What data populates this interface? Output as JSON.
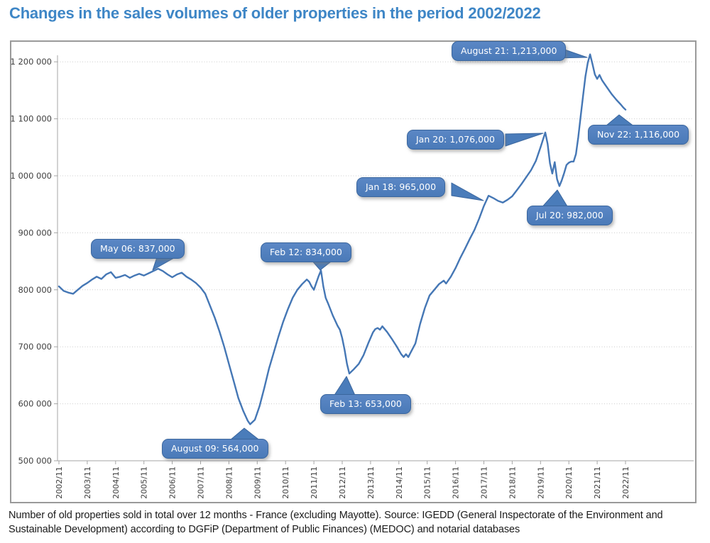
{
  "page": {
    "title": "Changes in the sales volumes of older properties in the period 2002/2022",
    "footer_line1": "Number of old properties sold in total over 12 months - France (excluding Mayotte). Source: IGEDD (General Inspectorate of the Environment and",
    "footer_line2": "Sustainable Development) according to DGFiP (Department of Public Finances) (MEDOC) and notarial databases"
  },
  "colors": {
    "title_blue": "#3E86C6",
    "line_blue": "#4577B5",
    "callout_fill": "#4A7CBA",
    "callout_border": "#3A669E",
    "chart_border": "#9A9A9A",
    "gridline": "#CBCBCB",
    "axis": "#A6A6A6",
    "axis_text": "#3F3F3F"
  },
  "chart_data": {
    "type": "line",
    "title": "Changes in the sales volumes of older properties in the period 2002/2022",
    "xlabel": "",
    "ylabel": "",
    "legend": "none",
    "grid": "horizontal-dotted",
    "ylim": [
      500000,
      1250000
    ],
    "y_tick_labels": [
      "500 000",
      "600 000",
      "700 000",
      "800 000",
      "900 000",
      "1 000 000",
      "1 100 000",
      "1 200 000"
    ],
    "x_tick_labels": [
      "2002/11",
      "2003/11",
      "2004/11",
      "2005/11",
      "2006/11",
      "2007/11",
      "2008/11",
      "2009/11",
      "2010/11",
      "2011/11",
      "2012/11",
      "2013/11",
      "2014/11",
      "2015/11",
      "2016/11",
      "2017/11",
      "2018/11",
      "2019/11",
      "2020/11",
      "2021/11",
      "2022/11"
    ],
    "series": [
      {
        "name": "Old properties sold in total over 12 months (France excluding Mayotte)",
        "points": [
          [
            "2002/11",
            806000
          ],
          [
            "2003/01",
            798000
          ],
          [
            "2003/03",
            795000
          ],
          [
            "2003/05",
            793000
          ],
          [
            "2003/07",
            800000
          ],
          [
            "2003/09",
            807000
          ],
          [
            "2003/11",
            812000
          ],
          [
            "2004/01",
            818000
          ],
          [
            "2004/03",
            823000
          ],
          [
            "2004/05",
            819000
          ],
          [
            "2004/07",
            827000
          ],
          [
            "2004/09",
            831000
          ],
          [
            "2004/11",
            821000
          ],
          [
            "2005/01",
            823000
          ],
          [
            "2005/03",
            826000
          ],
          [
            "2005/05",
            821000
          ],
          [
            "2005/07",
            825000
          ],
          [
            "2005/09",
            828000
          ],
          [
            "2005/11",
            825000
          ],
          [
            "2006/01",
            829000
          ],
          [
            "2006/03",
            833000
          ],
          [
            "2006/05",
            837000
          ],
          [
            "2006/07",
            833000
          ],
          [
            "2006/09",
            827000
          ],
          [
            "2006/11",
            822000
          ],
          [
            "2007/01",
            827000
          ],
          [
            "2007/03",
            830000
          ],
          [
            "2007/05",
            823000
          ],
          [
            "2007/07",
            818000
          ],
          [
            "2007/09",
            812000
          ],
          [
            "2007/11",
            804000
          ],
          [
            "2008/01",
            793000
          ],
          [
            "2008/03",
            772000
          ],
          [
            "2008/05",
            751000
          ],
          [
            "2008/07",
            727000
          ],
          [
            "2008/09",
            700000
          ],
          [
            "2008/11",
            670000
          ],
          [
            "2009/01",
            640000
          ],
          [
            "2009/03",
            610000
          ],
          [
            "2009/05",
            588000
          ],
          [
            "2009/07",
            570000
          ],
          [
            "2009/08",
            564000
          ],
          [
            "2009/10",
            572000
          ],
          [
            "2009/12",
            596000
          ],
          [
            "2010/02",
            628000
          ],
          [
            "2010/04",
            662000
          ],
          [
            "2010/06",
            690000
          ],
          [
            "2010/08",
            718000
          ],
          [
            "2010/10",
            744000
          ],
          [
            "2010/12",
            766000
          ],
          [
            "2011/02",
            786000
          ],
          [
            "2011/04",
            800000
          ],
          [
            "2011/06",
            810000
          ],
          [
            "2011/08",
            818000
          ],
          [
            "2011/09",
            814000
          ],
          [
            "2011/10",
            806000
          ],
          [
            "2011/11",
            800000
          ],
          [
            "2011/12",
            812000
          ],
          [
            "2012/01",
            824000
          ],
          [
            "2012/02",
            834000
          ],
          [
            "2012/03",
            806000
          ],
          [
            "2012/04",
            786000
          ],
          [
            "2012/05",
            776000
          ],
          [
            "2012/07",
            755000
          ],
          [
            "2012/09",
            737000
          ],
          [
            "2012/10",
            730000
          ],
          [
            "2012/11",
            715000
          ],
          [
            "2012/12",
            695000
          ],
          [
            "2013/01",
            670000
          ],
          [
            "2013/02",
            653000
          ],
          [
            "2013/03",
            657000
          ],
          [
            "2013/04",
            661000
          ],
          [
            "2013/06",
            670000
          ],
          [
            "2013/08",
            685000
          ],
          [
            "2013/10",
            706000
          ],
          [
            "2013/12",
            725000
          ],
          [
            "2014/01",
            731000
          ],
          [
            "2014/02",
            733000
          ],
          [
            "2014/03",
            730000
          ],
          [
            "2014/04",
            736000
          ],
          [
            "2014/06",
            726000
          ],
          [
            "2014/08",
            714000
          ],
          [
            "2014/10",
            701000
          ],
          [
            "2014/12",
            687000
          ],
          [
            "2015/01",
            682000
          ],
          [
            "2015/02",
            687000
          ],
          [
            "2015/03",
            682000
          ],
          [
            "2015/04",
            690000
          ],
          [
            "2015/06",
            706000
          ],
          [
            "2015/08",
            740000
          ],
          [
            "2015/10",
            768000
          ],
          [
            "2015/12",
            790000
          ],
          [
            "2016/02",
            800000
          ],
          [
            "2016/04",
            810000
          ],
          [
            "2016/06",
            816000
          ],
          [
            "2016/07",
            811000
          ],
          [
            "2016/09",
            823000
          ],
          [
            "2016/11",
            838000
          ],
          [
            "2017/01",
            856000
          ],
          [
            "2017/03",
            872000
          ],
          [
            "2017/05",
            889000
          ],
          [
            "2017/07",
            905000
          ],
          [
            "2017/09",
            925000
          ],
          [
            "2017/11",
            947000
          ],
          [
            "2018/01",
            965000
          ],
          [
            "2018/03",
            961000
          ],
          [
            "2018/05",
            956000
          ],
          [
            "2018/07",
            953000
          ],
          [
            "2018/09",
            958000
          ],
          [
            "2018/11",
            964000
          ],
          [
            "2019/01",
            975000
          ],
          [
            "2019/03",
            986000
          ],
          [
            "2019/05",
            998000
          ],
          [
            "2019/07",
            1010000
          ],
          [
            "2019/09",
            1026000
          ],
          [
            "2019/11",
            1050000
          ],
          [
            "2020/01",
            1076000
          ],
          [
            "2020/02",
            1056000
          ],
          [
            "2020/03",
            1022000
          ],
          [
            "2020/04",
            1004000
          ],
          [
            "2020/05",
            1024000
          ],
          [
            "2020/06",
            994000
          ],
          [
            "2020/07",
            982000
          ],
          [
            "2020/08",
            992000
          ],
          [
            "2020/09",
            1005000
          ],
          [
            "2020/10",
            1019000
          ],
          [
            "2020/11",
            1023000
          ],
          [
            "2020/12",
            1025000
          ],
          [
            "2021/01",
            1025000
          ],
          [
            "2021/02",
            1038000
          ],
          [
            "2021/03",
            1068000
          ],
          [
            "2021/04",
            1104000
          ],
          [
            "2021/05",
            1140000
          ],
          [
            "2021/06",
            1174000
          ],
          [
            "2021/07",
            1198000
          ],
          [
            "2021/08",
            1213000
          ],
          [
            "2021/09",
            1196000
          ],
          [
            "2021/10",
            1178000
          ],
          [
            "2021/11",
            1170000
          ],
          [
            "2021/12",
            1177000
          ],
          [
            "2022/01",
            1168000
          ],
          [
            "2022/02",
            1162000
          ],
          [
            "2022/03",
            1156000
          ],
          [
            "2022/05",
            1144000
          ],
          [
            "2022/07",
            1134000
          ],
          [
            "2022/09",
            1125000
          ],
          [
            "2022/10",
            1120000
          ],
          [
            "2022/11",
            1116000
          ]
        ]
      }
    ],
    "annotations": [
      {
        "label": "May 06: 837,000",
        "date": "2006/05",
        "value": 837000
      },
      {
        "label": "Feb 12: 834,000",
        "date": "2012/02",
        "value": 834000
      },
      {
        "label": "August 09: 564,000",
        "date": "2009/08",
        "value": 564000
      },
      {
        "label": "Feb 13: 653,000",
        "date": "2013/02",
        "value": 653000
      },
      {
        "label": "Jan 18: 965,000",
        "date": "2018/01",
        "value": 965000
      },
      {
        "label": "Jan 20: 1,076,000",
        "date": "2020/01",
        "value": 1076000
      },
      {
        "label": "August 21: 1,213,000",
        "date": "2021/08",
        "value": 1213000
      },
      {
        "label": "Jul 20: 982,000",
        "date": "2020/07",
        "value": 982000
      },
      {
        "label": "Nov 22: 1,116,000",
        "date": "2022/11",
        "value": 1116000
      }
    ]
  }
}
